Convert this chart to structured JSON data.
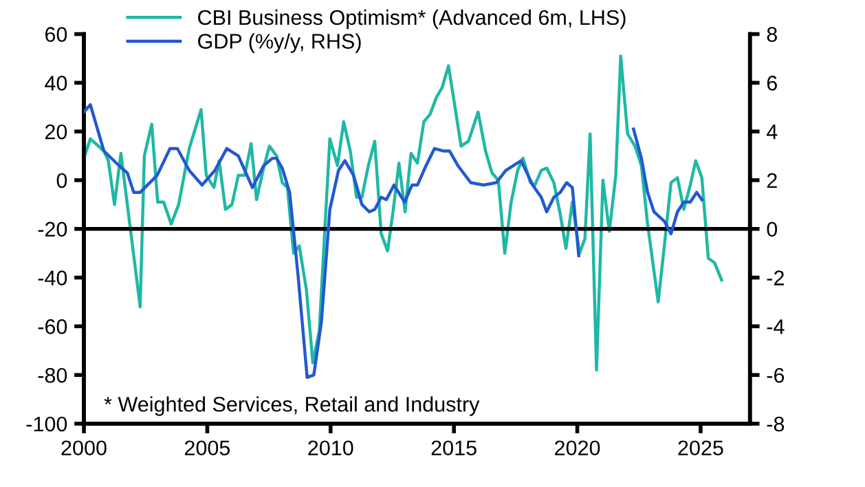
{
  "chart_data": {
    "type": "line",
    "series": [
      {
        "name": "CBI Business Optimism* (Advanced 6m, LHS)",
        "color": "#1fb8a4",
        "axis": "y",
        "x": [
          2000,
          2000.26,
          2000.81,
          2000.99,
          2001.24,
          2001.5,
          2002.28,
          2002.45,
          2002.75,
          2002.99,
          2003.23,
          2003.54,
          2003.84,
          2004.27,
          2004.75,
          2004.96,
          2005.27,
          2005.48,
          2005.74,
          2006.0,
          2006.26,
          2006.52,
          2006.78,
          2007.0,
          2007.26,
          2007.52,
          2007.81,
          2008.04,
          2008.25,
          2008.5,
          2008.73,
          2009.02,
          2009.28,
          2009.54,
          2009.97,
          2010.28,
          2010.53,
          2010.8,
          2011.05,
          2011.27,
          2011.53,
          2011.79,
          2012.05,
          2012.31,
          2012.53,
          2012.77,
          2013.02,
          2013.26,
          2013.52,
          2013.78,
          2014.03,
          2014.29,
          2014.52,
          2014.78,
          2015.29,
          2015.59,
          2015.98,
          2016.28,
          2016.54,
          2016.8,
          2017.06,
          2017.32,
          2017.58,
          2017.8,
          2018.1,
          2018.28,
          2018.54,
          2018.76,
          2019.05,
          2019.31,
          2019.54,
          2019.8,
          2020.09,
          2020.31,
          2020.52,
          2020.78,
          2021.04,
          2021.3,
          2021.56,
          2021.76,
          2022.04,
          2022.34,
          2022.6,
          2022.85,
          2023.28,
          2023.54,
          2023.8,
          2024.06,
          2024.32,
          2024.58,
          2024.8,
          2025.05,
          2025.31,
          2025.57,
          2025.85
        ],
        "values": [
          9,
          17,
          12,
          8,
          -10,
          11,
          -52,
          10,
          23,
          -9,
          -9,
          -18,
          -10,
          13,
          29,
          2,
          -3,
          8,
          -12,
          -10,
          2,
          2,
          15,
          -8,
          4,
          14,
          10,
          -1,
          -3,
          -30,
          -27,
          -45,
          -75,
          -62,
          17,
          6,
          24,
          12,
          -7,
          -7,
          6,
          16,
          -22,
          -29,
          -13,
          7,
          -13,
          11,
          7,
          24,
          27,
          34,
          38,
          47,
          14,
          16,
          28,
          12,
          3,
          0,
          -30,
          -9,
          4,
          9,
          -1,
          -2,
          4,
          5,
          -1,
          -14,
          -28,
          -9,
          -30,
          -24,
          19,
          -78,
          0,
          -21,
          2,
          51,
          19,
          14,
          6,
          -18,
          -50,
          -26,
          -1,
          1,
          -12,
          -2,
          8,
          1,
          -32,
          -34,
          -41
        ]
      },
      {
        "name": "GDP (%y/y, RHS)",
        "color": "#2458d0",
        "axis": "y2",
        "x": [
          2000,
          2000.26,
          2000.81,
          2001.42,
          2001.76,
          2002.02,
          2002.28,
          2002.97,
          2003.49,
          2003.79,
          2004.27,
          2004.79,
          2005.31,
          2005.79,
          2006.26,
          2006.83,
          2007.29,
          2007.64,
          2007.81,
          2008.04,
          2008.34,
          2008.68,
          2009.05,
          2009.32,
          2009.63,
          2009.97,
          2010.32,
          2010.58,
          2010.93,
          2011.27,
          2011.57,
          2011.79,
          2012.05,
          2012.26,
          2012.57,
          2013.0,
          2013.3,
          2013.52,
          2013.87,
          2014.21,
          2014.56,
          2014.82,
          2015.16,
          2015.68,
          2016.2,
          2016.72,
          2017.1,
          2017.72,
          2018.1,
          2018.19,
          2018.54,
          2018.76,
          2019.05,
          2019.31,
          2019.57,
          2019.8,
          2020.06,
          2020.25,
          2020.5,
          2020.75,
          2021.04,
          2021.25,
          2021.5,
          2021.75,
          2022.0,
          2022.28,
          2022.6,
          2022.85,
          2023.11,
          2023.54,
          2023.8,
          2024.06,
          2024.32,
          2024.58,
          2024.84,
          2025.05
        ],
        "values": [
          4.8,
          5.1,
          3.2,
          2.6,
          2.3,
          1.5,
          1.5,
          2.2,
          3.3,
          3.3,
          2.4,
          1.8,
          2.4,
          3.3,
          3.0,
          1.7,
          2.6,
          2.9,
          2.9,
          2.5,
          1.5,
          -1.9,
          -6.1,
          -6.0,
          -3.8,
          0.8,
          2.4,
          2.8,
          2.2,
          1.0,
          0.7,
          0.8,
          1.3,
          1.2,
          1.8,
          1.1,
          1.8,
          1.8,
          2.6,
          3.3,
          3.2,
          3.2,
          2.6,
          1.9,
          1.8,
          1.9,
          2.4,
          2.8,
          2.0,
          1.8,
          1.3,
          0.7,
          1.3,
          1.5,
          1.9,
          1.7,
          -1.1,
          null,
          null,
          null,
          null,
          null,
          null,
          null,
          null,
          4.1,
          2.9,
          1.5,
          0.7,
          0.3,
          -0.2,
          0.7,
          1.1,
          1.1,
          1.5,
          1.2
        ]
      }
    ],
    "xlim": [
      2000,
      2027
    ],
    "xticks": [
      2000,
      2005,
      2010,
      2015,
      2020,
      2025
    ],
    "ylim": [
      -100,
      60
    ],
    "yticks": [
      -100,
      -80,
      -60,
      -40,
      -20,
      0,
      20,
      40,
      60
    ],
    "y2lim": [
      -8,
      8
    ],
    "y2ticks": [
      -8,
      -6,
      -4,
      -2,
      0,
      2,
      4,
      6,
      8
    ],
    "ref_lines": [
      {
        "axis": "y2",
        "value": 0,
        "color": "#000000"
      }
    ],
    "annotations": [
      "* Weighted Services, Retail and Industry"
    ],
    "legend": "top left",
    "grid": false,
    "marker": "none",
    "line_style": "solid"
  }
}
